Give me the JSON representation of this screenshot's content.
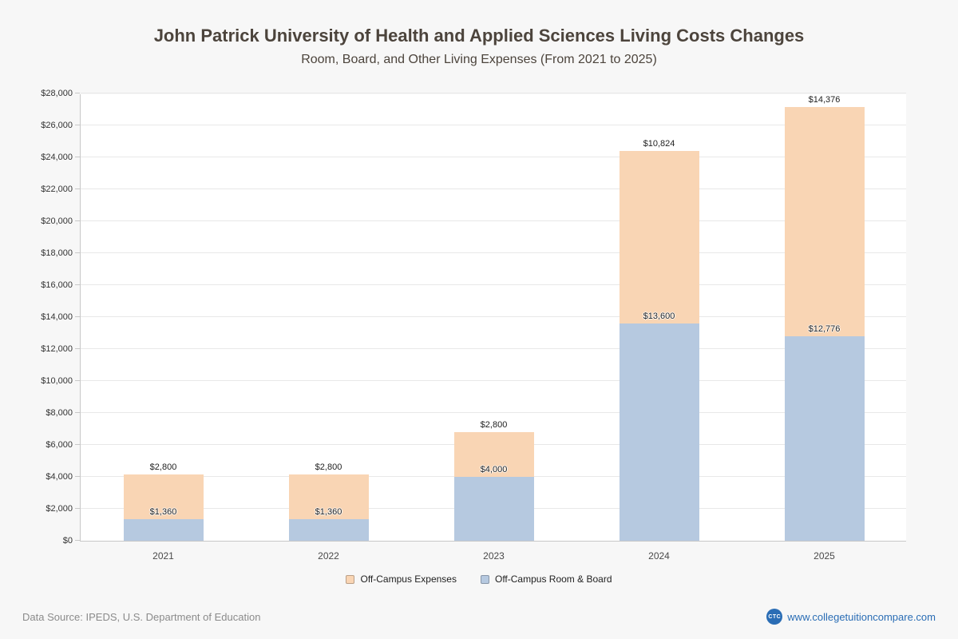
{
  "header": {
    "title": "John Patrick University of Health and Applied Sciences Living Costs Changes",
    "subtitle": "Room, Board, and Other Living Expenses (From 2021 to 2025)"
  },
  "chart_data": {
    "type": "bar",
    "stacked": true,
    "title": "John Patrick University of Health and Applied Sciences Living Costs Changes",
    "subtitle": "Room, Board, and Other Living Expenses (From 2021 to 2025)",
    "categories": [
      "2021",
      "2022",
      "2023",
      "2024",
      "2025"
    ],
    "series": [
      {
        "name": "Off-Campus Room & Board",
        "color": "#b6c9e0",
        "values": [
          1360,
          1360,
          4000,
          13600,
          12776
        ],
        "labels": [
          "$1,360",
          "$1,360",
          "$4,000",
          "$13,600",
          "$12,776"
        ]
      },
      {
        "name": "Off-Campus Expenses",
        "color": "#f9d5b4",
        "values": [
          2800,
          2800,
          2800,
          10824,
          14376
        ],
        "labels": [
          "$2,800",
          "$2,800",
          "$2,800",
          "$10,824",
          "$14,376"
        ]
      }
    ],
    "ylim": [
      0,
      28000
    ],
    "ytick_step": 2000,
    "ytick_labels": [
      "$0",
      "$2,000",
      "$4,000",
      "$6,000",
      "$8,000",
      "$10,000",
      "$12,000",
      "$14,000",
      "$16,000",
      "$18,000",
      "$20,000",
      "$22,000",
      "$24,000",
      "$26,000",
      "$28,000"
    ],
    "grid": true,
    "legend_position": "bottom"
  },
  "legend": {
    "items": [
      {
        "label": "Off-Campus Expenses",
        "color": "#f9d5b4"
      },
      {
        "label": "Off-Campus Room & Board",
        "color": "#b6c9e0"
      }
    ]
  },
  "footer": {
    "source": "Data Source: IPEDS, U.S. Department of Education",
    "site": "www.collegetuitioncompare.com",
    "logo_text": "CTC"
  }
}
